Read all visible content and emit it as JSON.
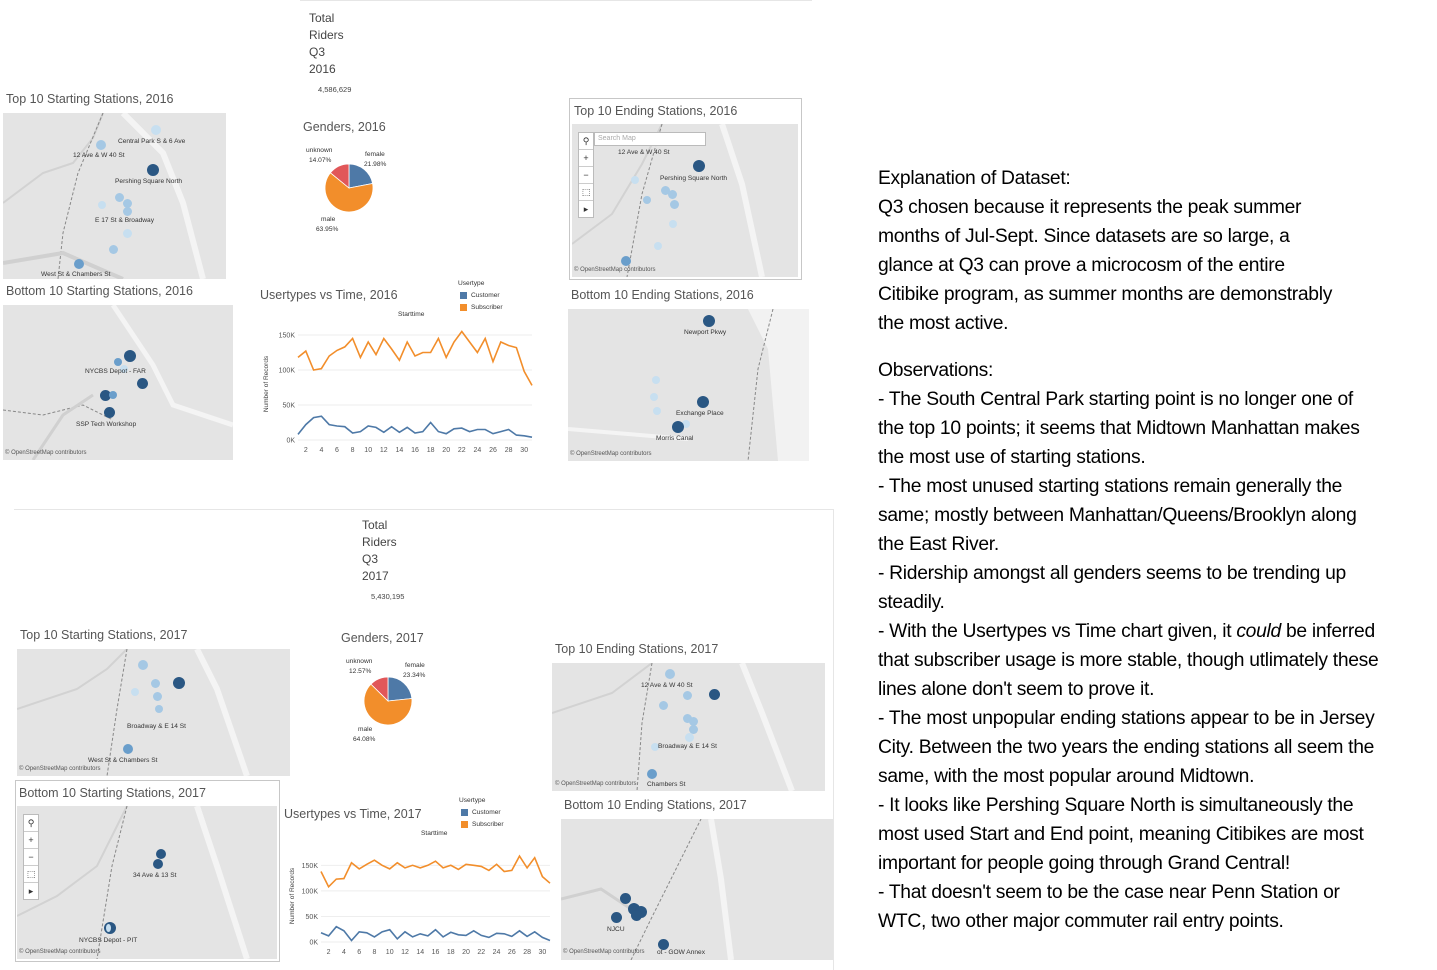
{
  "y2016": {
    "total": {
      "line1": "Total",
      "line2": "Riders",
      "line3": "Q3",
      "line4": "2016",
      "value": "4,586,629"
    },
    "top_start": {
      "title": "Top 10 Starting Stations, 2016",
      "labels": [
        "Central Park S & 6 Ave",
        "12 Ave & W 40 St",
        "Pershing Square North",
        "E 17 St & Broadway",
        "West St & Chambers St"
      ]
    },
    "genders": {
      "title": "Genders, 2016",
      "unknown_label": "unknown",
      "unknown_pct": "14.07%",
      "female_label": "female",
      "female_pct": "21.98%",
      "male_label": "male",
      "male_pct": "63.95%"
    },
    "top_end": {
      "title": "Top 10 Ending Stations, 2016",
      "search_placeholder": "Search Map",
      "labels": [
        "12 Ave & W 40 St",
        "Pershing Square North"
      ]
    },
    "bottom_start": {
      "title": "Bottom 10 Starting Stations, 2016",
      "labels": [
        "NYCBS Depot - FAR",
        "SSP Tech Workshop"
      ]
    },
    "usertypes": {
      "title": "Usertypes vs Time, 2016",
      "legend_title": "Usertype",
      "customer": "Customer",
      "subscriber": "Subscriber",
      "x_title": "Starttime",
      "y_title": "Number of Records"
    },
    "bottom_end": {
      "title": "Bottom 10 Ending Stations, 2016",
      "labels": [
        "Newport Pkwy",
        "Exchange Place",
        "Morris Canal"
      ]
    }
  },
  "y2017": {
    "total": {
      "line1": "Total",
      "line2": "Riders",
      "line3": "Q3",
      "line4": "2017",
      "value": "5,430,195"
    },
    "top_start": {
      "title": "Top 10 Starting Stations, 2017",
      "labels": [
        "Broadway & E 14 St",
        "West St & Chambers St"
      ]
    },
    "genders": {
      "title": "Genders, 2017",
      "unknown_label": "unknown",
      "unknown_pct": "12.57%",
      "female_label": "female",
      "female_pct": "23.34%",
      "male_label": "male",
      "male_pct": "64.08%"
    },
    "top_end": {
      "title": "Top 10 Ending Stations, 2017",
      "labels": [
        "12 Ave & W 40 St",
        "Broadway & E 14 St",
        "Chambers St"
      ]
    },
    "bottom_start": {
      "title": "Bottom 10 Starting Stations, 2017",
      "labels": [
        "34 Ave & 13 St",
        "NYCBS Depot - PIT"
      ]
    },
    "usertypes": {
      "title": "Usertypes vs Time, 2017",
      "legend_title": "Usertype",
      "customer": "Customer",
      "subscriber": "Subscriber",
      "x_title": "Starttime",
      "y_title": "Number of Records"
    },
    "bottom_end": {
      "title": "Bottom 10 Ending Stations, 2017",
      "labels": [
        "NJCU",
        "ot - GOW Annex"
      ]
    }
  },
  "osm_credit": "© OpenStreetMap contributors",
  "map_tools": {
    "zoom_in": "+",
    "zoom_out": "−",
    "arrow": "▸"
  },
  "colors": {
    "customer": "#4e79a7",
    "subscriber": "#f28e2b",
    "unknown": "#e15759",
    "dark_point": "#2a5783",
    "light_point": "#a5c8e4"
  },
  "chart_data": [
    {
      "type": "pie",
      "title": "Genders, 2016",
      "categories": [
        "female",
        "male",
        "unknown"
      ],
      "values": [
        21.98,
        63.95,
        14.07
      ]
    },
    {
      "type": "pie",
      "title": "Genders, 2017",
      "categories": [
        "female",
        "male",
        "unknown"
      ],
      "values": [
        23.34,
        64.08,
        12.57
      ]
    },
    {
      "type": "line",
      "title": "Usertypes vs Time, 2016",
      "xlabel": "Starttime",
      "ylabel": "Number of Records",
      "x": [
        1,
        2,
        3,
        4,
        5,
        6,
        7,
        8,
        9,
        10,
        11,
        12,
        13,
        14,
        15,
        16,
        17,
        18,
        19,
        20,
        21,
        22,
        23,
        24,
        25,
        26,
        27,
        28,
        29,
        30,
        31
      ],
      "x_ticks": [
        2,
        4,
        6,
        8,
        10,
        12,
        14,
        16,
        18,
        20,
        22,
        24,
        26,
        28,
        30
      ],
      "y_ticks": [
        "0K",
        "50K",
        "100K",
        "150K"
      ],
      "ylim": [
        0,
        160000
      ],
      "series": [
        {
          "name": "Subscriber",
          "values": [
            118000,
            127000,
            100000,
            102000,
            120000,
            128000,
            133000,
            145000,
            118000,
            140000,
            122000,
            145000,
            130000,
            114000,
            140000,
            120000,
            125000,
            125000,
            145000,
            118000,
            140000,
            155000,
            140000,
            125000,
            145000,
            112000,
            140000,
            135000,
            132000,
            98000,
            78000
          ]
        },
        {
          "name": "Customer",
          "values": [
            8000,
            22000,
            32000,
            34000,
            22000,
            20000,
            19000,
            10000,
            12000,
            20000,
            18000,
            11000,
            19000,
            11000,
            18000,
            10000,
            12000,
            25000,
            12000,
            9000,
            16000,
            17000,
            12000,
            15000,
            15000,
            9000,
            12000,
            15000,
            7000,
            6000,
            4000
          ]
        }
      ]
    },
    {
      "type": "line",
      "title": "Usertypes vs Time, 2017",
      "xlabel": "Starttime",
      "ylabel": "Number of Records",
      "x": [
        1,
        2,
        3,
        4,
        5,
        6,
        7,
        8,
        9,
        10,
        11,
        12,
        13,
        14,
        15,
        16,
        17,
        18,
        19,
        20,
        21,
        22,
        23,
        24,
        25,
        26,
        27,
        28,
        29,
        30,
        31
      ],
      "x_ticks": [
        2,
        4,
        6,
        8,
        10,
        12,
        14,
        16,
        18,
        20,
        22,
        24,
        26,
        28,
        30
      ],
      "y_ticks": [
        "0K",
        "50K",
        "100K",
        "150K"
      ],
      "ylim": [
        0,
        180000
      ],
      "series": [
        {
          "name": "Subscriber",
          "values": [
            138000,
            108000,
            123000,
            124000,
            155000,
            143000,
            152000,
            160000,
            150000,
            143000,
            155000,
            145000,
            150000,
            145000,
            150000,
            158000,
            145000,
            150000,
            142000,
            152000,
            150000,
            148000,
            140000,
            152000,
            138000,
            140000,
            168000,
            145000,
            165000,
            128000,
            115000
          ]
        },
        {
          "name": "Customer",
          "values": [
            18000,
            12000,
            30000,
            22000,
            3000,
            20000,
            18000,
            10000,
            20000,
            24000,
            6000,
            20000,
            10000,
            16000,
            12000,
            24000,
            10000,
            19000,
            14000,
            13000,
            22000,
            13000,
            9000,
            17000,
            16000,
            11000,
            22000,
            11000,
            20000,
            9000,
            3000
          ]
        }
      ]
    }
  ],
  "explanation": {
    "heading": "Explanation of Dataset:",
    "lines": [
      "Q3 chosen because it represents the peak summer",
      "months of Jul-Sept. Since datasets are so large, a",
      "glance at Q3 can prove a microcosm of the entire",
      "Citibike program, as summer months are demonstrably",
      "the most active."
    ]
  },
  "observations": {
    "heading": "Observations:",
    "lines": [
      "- The South Central Park starting point is no longer one of",
      "the top 10 points; it seems that Midtown Manhattan makes",
      "the most use of starting stations.",
      "- The most unused starting stations remain generally the",
      "same; mostly between Manhattan/Queens/Brooklyn along",
      "the East River.",
      "- Ridership amongst all genders seems to be trending up",
      "steadily.",
      "- With the Usertypes vs Time chart given, it ",
      "could",
      " be inferred",
      "that subscriber usage is more stable, though utlimately these",
      "lines alone don't seem to prove it.",
      "- The most unpopular ending stations appear to be in Jersey",
      "City. Between the two years the ending stations all seem the",
      "same, with the most popular around Midtown.",
      "- It looks like Pershing Square North is simultaneously the",
      "most used Start and End point, meaning Citibikes are most",
      "important for people going through Grand Central!",
      "- That doesn't seem to be the case near Penn Station or",
      "WTC, two other major commuter rail entry points."
    ]
  }
}
